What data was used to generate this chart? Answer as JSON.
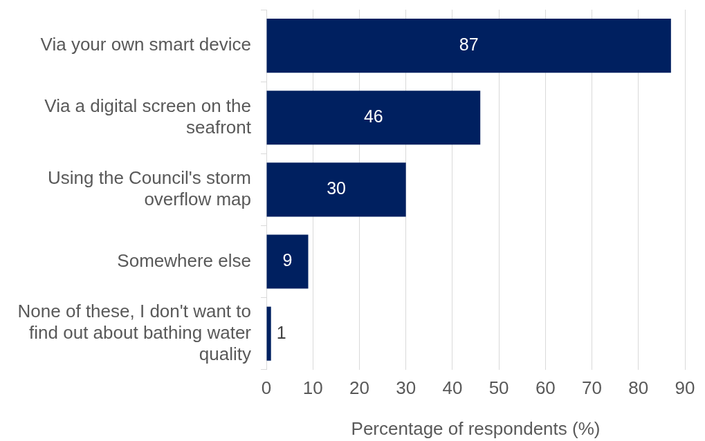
{
  "chart_data": {
    "type": "bar",
    "orientation": "horizontal",
    "xlabel": "Percentage of respondents (%)",
    "categories": [
      "Via your own smart device",
      "Via a digital screen on the seafront",
      "Using the Council's storm overflow map",
      "Somewhere else",
      "None of these, I don't want to find out about bathing water quality"
    ],
    "values": [
      87,
      46,
      30,
      9,
      1
    ],
    "color": "#002060",
    "xlim": [
      0,
      90
    ],
    "xticks": [
      0,
      10,
      20,
      30,
      40,
      50,
      60,
      70,
      80,
      90
    ],
    "grid": "x",
    "data_labels": true
  }
}
